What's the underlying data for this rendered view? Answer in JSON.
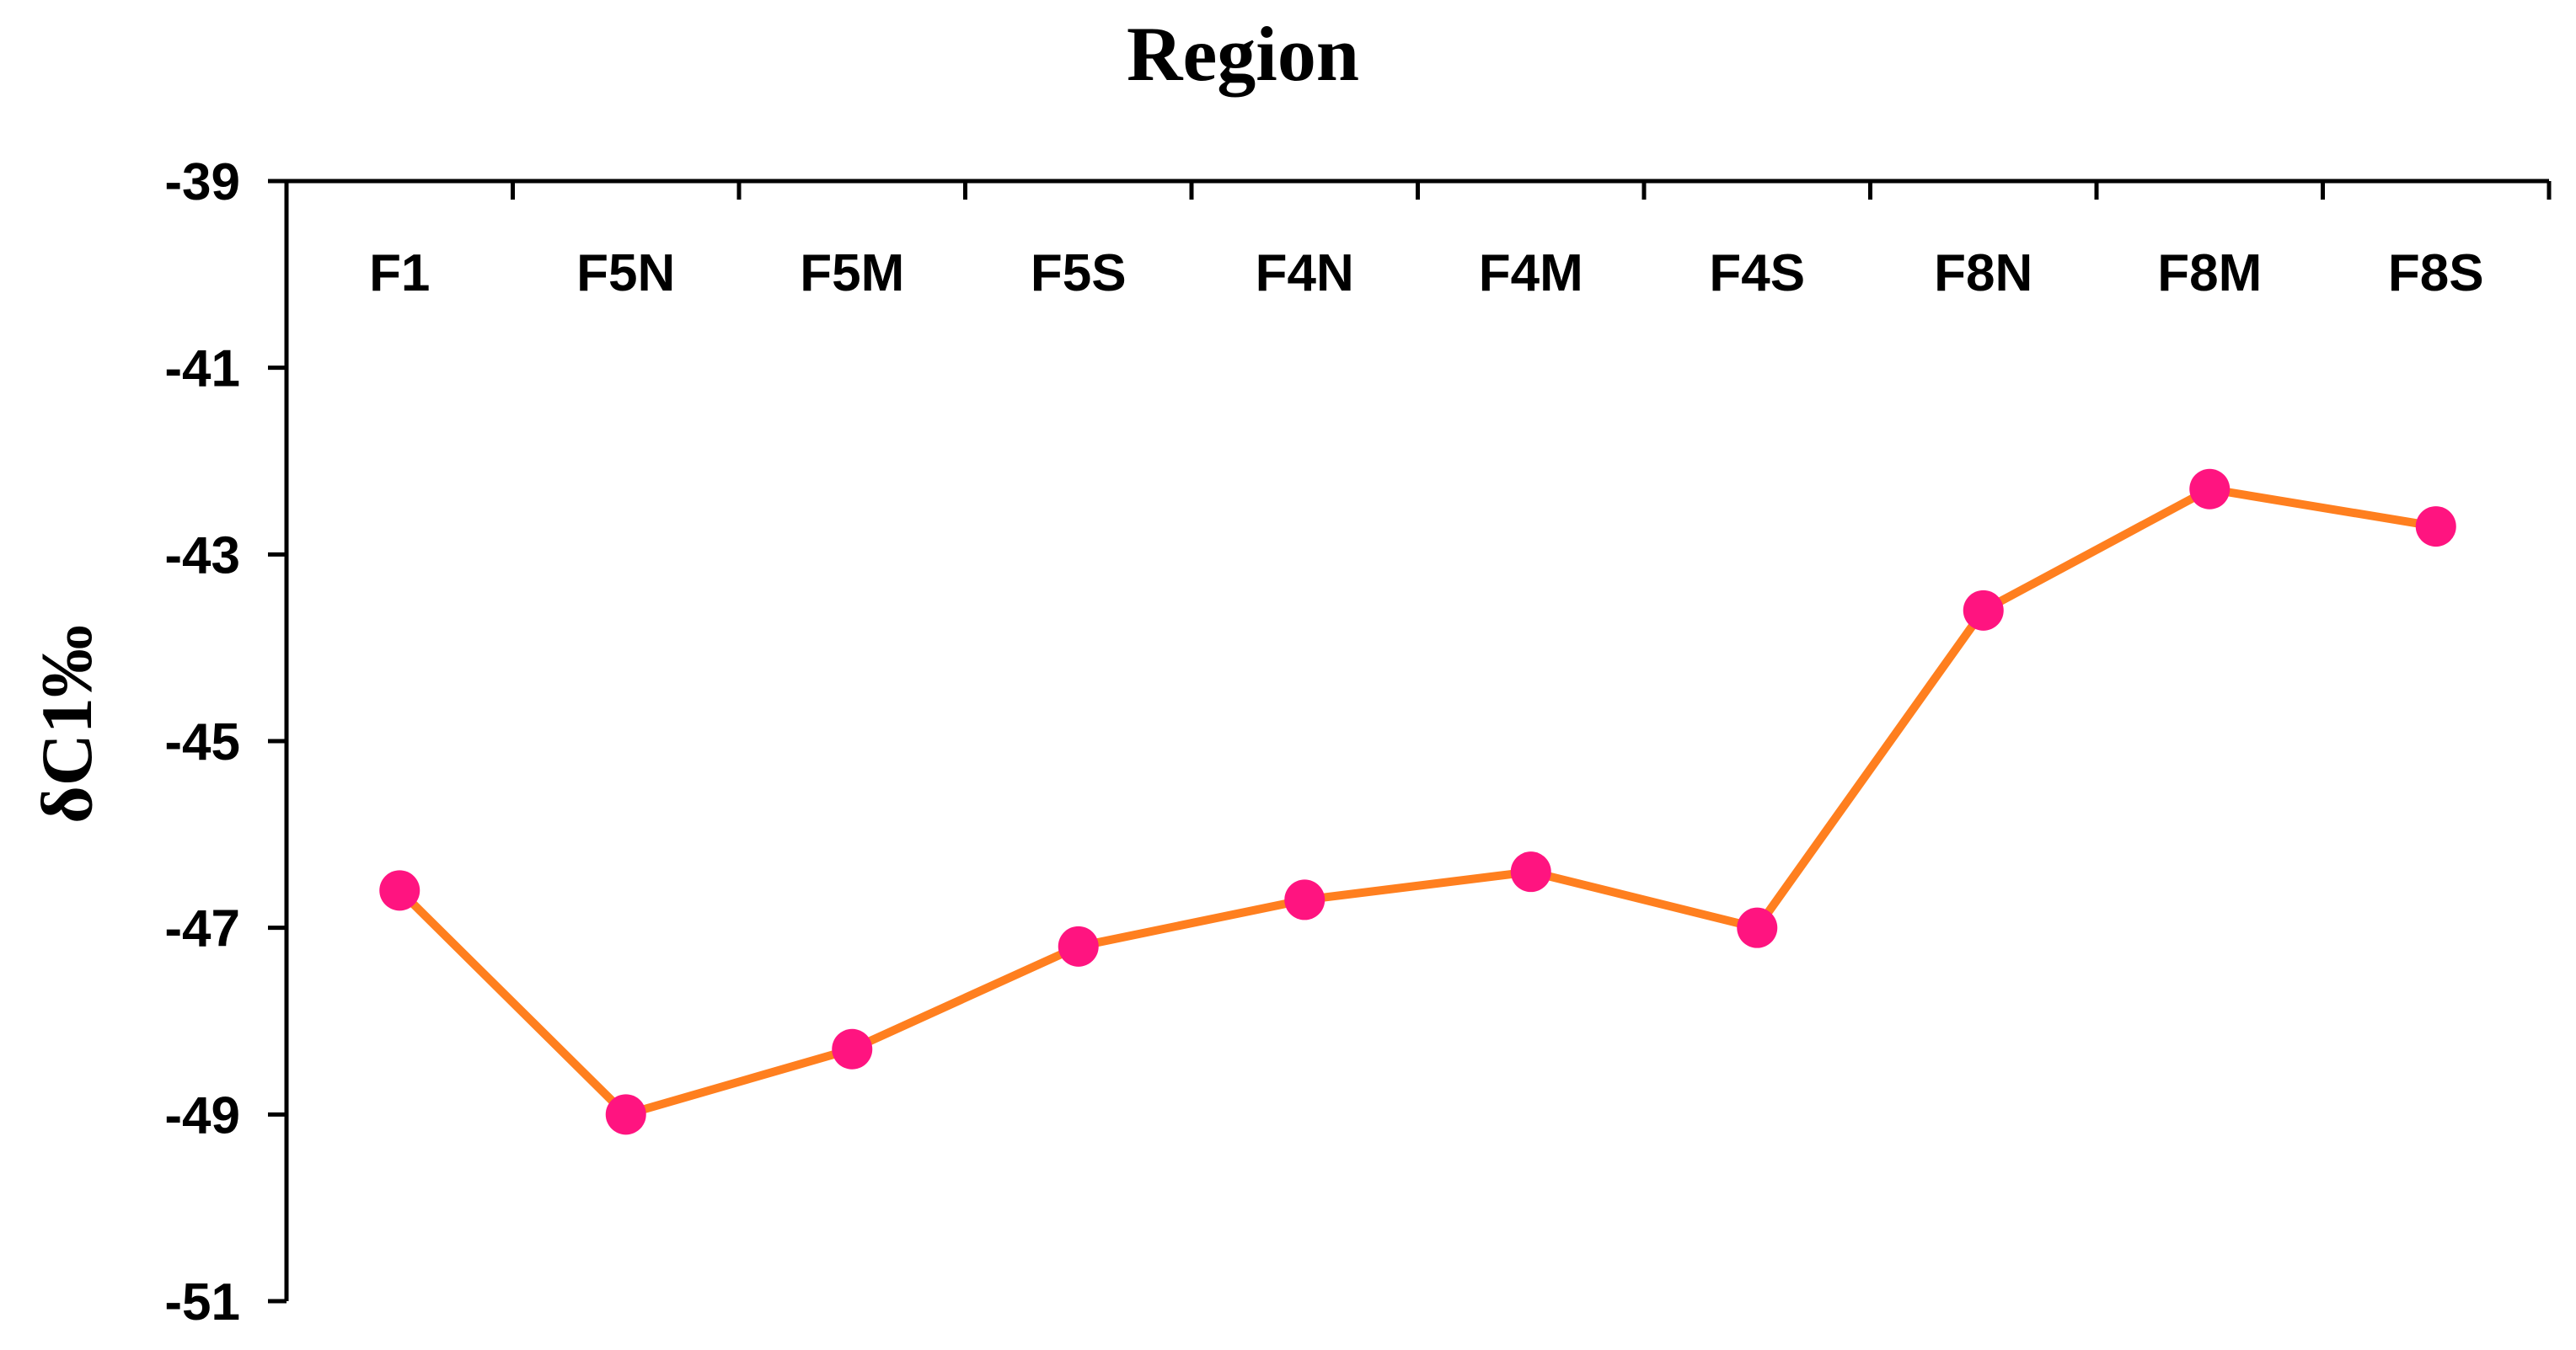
{
  "chart_data": {
    "type": "line",
    "title": "",
    "xlabel": "Region",
    "ylabel": "δC1‰",
    "x_axis_position": "top",
    "categories": [
      "F1",
      "F5N",
      "F5M",
      "F5S",
      "F4N",
      "F4M",
      "F4S",
      "F8N",
      "F8M",
      "F8S"
    ],
    "series": [
      {
        "values": [
          -46.6,
          -49.0,
          -48.3,
          -47.2,
          -46.7,
          -46.4,
          -47.0,
          -43.6,
          -42.3,
          -42.7
        ],
        "line_color": "#FF7F1F",
        "marker_color": "#FF1480",
        "marker": "circle"
      }
    ],
    "ylim": [
      -51,
      -39
    ],
    "yticks": [
      -39,
      -41,
      -43,
      -45,
      -47,
      -49,
      -51
    ],
    "ytick_labels": [
      "-39",
      "-41",
      "-43",
      "-45",
      "-47",
      "-49",
      "-51"
    ],
    "grid": false,
    "legend": "none"
  }
}
